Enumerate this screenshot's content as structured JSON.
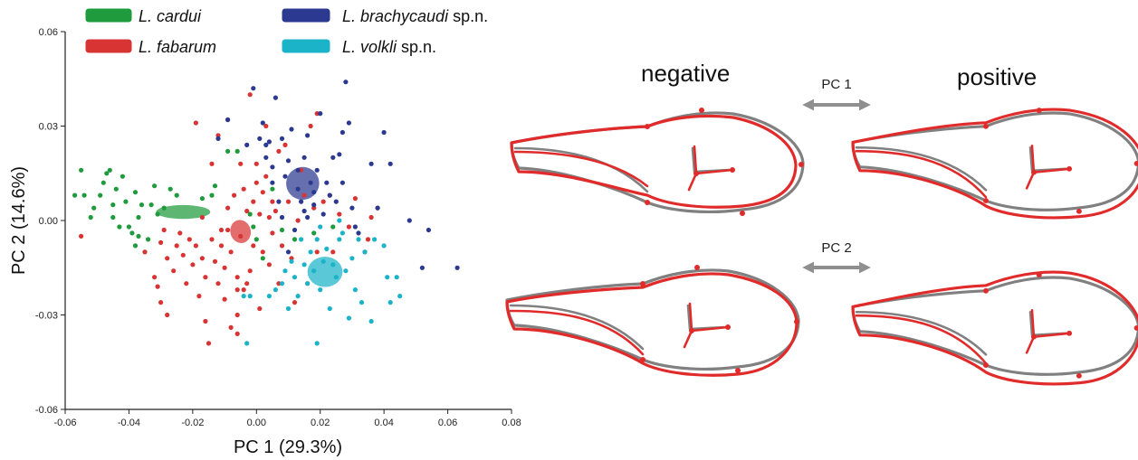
{
  "chart_data": {
    "type": "scatter",
    "xlabel": "PC 1 (29.3%)",
    "ylabel": "PC 2 (14.6%)",
    "xlim": [
      -0.06,
      0.08
    ],
    "ylim": [
      -0.06,
      0.06
    ],
    "xticks": [
      "-0.06",
      "-0.04",
      "-0.02",
      "0.00",
      "0.02",
      "0.04",
      "0.06",
      "0.08"
    ],
    "yticks": [
      "-0.06",
      "-0.03",
      "0.00",
      "0.03",
      "0.06"
    ],
    "legend_position": "top",
    "series": [
      {
        "name": "L. cardui",
        "name_italic": "L. cardui",
        "name_suffix": "",
        "color": "#1f9a3c",
        "ellipse": {
          "cx": -0.023,
          "cy": 0.0027,
          "rx": 0.0085,
          "ry": 0.0022,
          "angle": 0
        },
        "points": [
          [
            -0.057,
            0.008
          ],
          [
            -0.055,
            0.016
          ],
          [
            -0.054,
            0.008
          ],
          [
            -0.052,
            0.001
          ],
          [
            -0.051,
            0.004
          ],
          [
            -0.049,
            0.008
          ],
          [
            -0.048,
            0.012
          ],
          [
            -0.047,
            0.015
          ],
          [
            -0.046,
            0.016
          ],
          [
            -0.045,
            0.001
          ],
          [
            -0.045,
            0.005
          ],
          [
            -0.044,
            0.01
          ],
          [
            -0.043,
            -0.002
          ],
          [
            -0.042,
            0.014
          ],
          [
            -0.041,
            0.006
          ],
          [
            -0.04,
            -0.002
          ],
          [
            -0.039,
            -0.004
          ],
          [
            -0.038,
            -0.008
          ],
          [
            -0.038,
            0.009
          ],
          [
            -0.037,
            -0.005
          ],
          [
            -0.037,
            0.001
          ],
          [
            -0.036,
            0.005
          ],
          [
            -0.035,
            -0.01
          ],
          [
            -0.034,
            -0.006
          ],
          [
            -0.033,
            0.005
          ],
          [
            -0.032,
            0.011
          ],
          [
            -0.031,
            0.002
          ],
          [
            -0.029,
            0.004
          ],
          [
            -0.027,
            0.01
          ],
          [
            -0.025,
            0.008
          ],
          [
            -0.017,
            0.007
          ],
          [
            -0.014,
            0.008
          ],
          [
            -0.013,
            0.011
          ],
          [
            -0.009,
            0.022
          ],
          [
            -0.006,
            0.022
          ],
          [
            -0.002,
            0.002
          ],
          [
            -0.001,
            -0.002
          ],
          [
            0.0,
            -0.006
          ],
          [
            0.002,
            -0.012
          ],
          [
            0.005,
            0.01
          ],
          [
            0.008,
            -0.003
          ],
          [
            0.012,
            -0.006
          ],
          [
            0.018,
            -0.004
          ],
          [
            0.024,
            -0.002
          ]
        ]
      },
      {
        "name": "L. fabarum",
        "name_italic": "L. fabarum",
        "name_suffix": "",
        "color": "#d83434",
        "ellipse": {
          "cx": -0.005,
          "cy": -0.0035,
          "rx": 0.0032,
          "ry": 0.0037,
          "angle": 15
        },
        "points": [
          [
            -0.055,
            -0.005
          ],
          [
            -0.035,
            -0.01
          ],
          [
            -0.032,
            -0.018
          ],
          [
            -0.031,
            -0.021
          ],
          [
            -0.03,
            -0.007
          ],
          [
            -0.03,
            -0.026
          ],
          [
            -0.029,
            -0.003
          ],
          [
            -0.028,
            -0.012
          ],
          [
            -0.028,
            -0.03
          ],
          [
            -0.026,
            -0.016
          ],
          [
            -0.025,
            -0.008
          ],
          [
            -0.024,
            -0.004
          ],
          [
            -0.023,
            -0.011
          ],
          [
            -0.022,
            -0.02
          ],
          [
            -0.021,
            -0.006
          ],
          [
            -0.02,
            -0.014
          ],
          [
            -0.019,
            -0.008
          ],
          [
            -0.018,
            -0.024
          ],
          [
            -0.017,
            -0.012
          ],
          [
            -0.016,
            -0.018
          ],
          [
            -0.016,
            -0.032
          ],
          [
            -0.015,
            -0.039
          ],
          [
            -0.014,
            -0.006
          ],
          [
            -0.013,
            -0.013
          ],
          [
            -0.012,
            -0.02
          ],
          [
            -0.012,
            0.027
          ],
          [
            -0.011,
            -0.008
          ],
          [
            -0.01,
            -0.015
          ],
          [
            -0.01,
            -0.025
          ],
          [
            -0.009,
            0.004
          ],
          [
            -0.009,
            -0.003
          ],
          [
            -0.008,
            -0.01
          ],
          [
            -0.008,
            -0.034
          ],
          [
            -0.007,
            0.008
          ],
          [
            -0.006,
            -0.018
          ],
          [
            -0.006,
            -0.022
          ],
          [
            -0.006,
            -0.03
          ],
          [
            -0.006,
            -0.036
          ],
          [
            -0.005,
            0.018
          ],
          [
            -0.005,
            -0.005
          ],
          [
            -0.004,
            0.01
          ],
          [
            -0.004,
            -0.022
          ],
          [
            -0.003,
            0.003
          ],
          [
            -0.002,
            0.04
          ],
          [
            -0.002,
            -0.016
          ],
          [
            -0.001,
            0.006
          ],
          [
            -0.001,
            -0.008
          ],
          [
            0.0,
            0.012
          ],
          [
            0.001,
            0.002
          ],
          [
            0.001,
            -0.028
          ],
          [
            0.002,
            0.009
          ],
          [
            0.002,
            -0.01
          ],
          [
            0.003,
            0.014
          ],
          [
            0.003,
            0.03
          ],
          [
            0.004,
            -0.014
          ],
          [
            0.004,
            0.001
          ],
          [
            0.005,
            0.006
          ],
          [
            0.005,
            -0.004
          ],
          [
            0.006,
            0.003
          ],
          [
            0.007,
            0.022
          ],
          [
            0.007,
            -0.02
          ],
          [
            0.008,
            -0.008
          ],
          [
            0.009,
            0.024
          ],
          [
            0.01,
            0.006
          ],
          [
            0.011,
            -0.012
          ],
          [
            0.012,
            -0.026
          ],
          [
            0.013,
            0.0
          ],
          [
            0.015,
            0.008
          ],
          [
            0.016,
            -0.02
          ],
          [
            0.017,
            0.03
          ],
          [
            0.018,
            0.004
          ],
          [
            0.019,
            0.034
          ],
          [
            0.019,
            -0.01
          ],
          [
            0.021,
            0.006
          ],
          [
            0.023,
            0.008
          ],
          [
            0.024,
            -0.01
          ],
          [
            0.026,
            0.002
          ],
          [
            0.029,
            -0.002
          ],
          [
            0.031,
            0.007
          ],
          [
            0.035,
            -0.006
          ],
          [
            0.036,
            0.001
          ],
          [
            0.038,
            0.004
          ],
          [
            -0.017,
            0.001
          ],
          [
            -0.003,
            -0.02
          ],
          [
            0.014,
            0.016
          ],
          [
            -0.019,
            0.031
          ],
          [
            -0.014,
            0.018
          ],
          [
            -0.009,
            0.032
          ],
          [
            0.0,
            0.018
          ],
          [
            -0.011,
            -0.003
          ]
        ]
      },
      {
        "name": "L. brachycaudi sp.n.",
        "name_italic": "L. brachycaudi",
        "name_suffix": " sp.n.",
        "color": "#2b3990",
        "ellipse": {
          "cx": 0.0145,
          "cy": 0.0118,
          "rx": 0.0052,
          "ry": 0.0052,
          "angle": 30
        },
        "points": [
          [
            -0.012,
            0.026
          ],
          [
            -0.009,
            0.032
          ],
          [
            -0.003,
            0.024
          ],
          [
            -0.001,
            0.042
          ],
          [
            0.001,
            0.026
          ],
          [
            0.002,
            0.031
          ],
          [
            0.003,
            0.02
          ],
          [
            0.003,
            0.024
          ],
          [
            0.004,
            0.025
          ],
          [
            0.005,
            0.017
          ],
          [
            0.005,
            0.012
          ],
          [
            0.006,
            0.039
          ],
          [
            0.007,
            0.006
          ],
          [
            0.008,
            0.026
          ],
          [
            0.009,
            0.014
          ],
          [
            0.01,
            0.019
          ],
          [
            0.011,
            0.029
          ],
          [
            0.012,
            -0.003
          ],
          [
            0.013,
            0.016
          ],
          [
            0.013,
            0.01
          ],
          [
            0.014,
            0.006
          ],
          [
            0.015,
            0.02
          ],
          [
            0.015,
            0.003
          ],
          [
            0.016,
            0.027
          ],
          [
            0.017,
            0.012
          ],
          [
            0.018,
            0.009
          ],
          [
            0.018,
            0.005
          ],
          [
            0.019,
            0.016
          ],
          [
            0.02,
            0.034
          ],
          [
            0.021,
            0.002
          ],
          [
            0.022,
            0.012
          ],
          [
            0.023,
            0.008
          ],
          [
            0.024,
            0.02
          ],
          [
            0.025,
            0.006
          ],
          [
            0.026,
            0.021
          ],
          [
            0.027,
            0.028
          ],
          [
            0.027,
            0.012
          ],
          [
            0.028,
            0.044
          ],
          [
            0.029,
            0.031
          ],
          [
            0.03,
            0.004
          ],
          [
            0.031,
            -0.002
          ],
          [
            0.032,
            -0.004
          ],
          [
            0.034,
            -0.01
          ],
          [
            0.036,
            0.018
          ],
          [
            0.038,
            0.004
          ],
          [
            0.04,
            0.028
          ],
          [
            0.042,
            0.018
          ],
          [
            0.048,
            0.0
          ],
          [
            0.052,
            -0.015
          ],
          [
            0.054,
            -0.003
          ],
          [
            0.063,
            -0.015
          ],
          [
            0.016,
            0.001
          ],
          [
            0.01,
            -0.01
          ],
          [
            0.008,
            0.001
          ]
        ]
      },
      {
        "name": "L. volkli sp.n.",
        "name_italic": "L. volkli",
        "name_suffix": " sp.n.",
        "color": "#1ab3c7",
        "ellipse": {
          "cx": 0.0215,
          "cy": -0.0163,
          "rx": 0.0055,
          "ry": 0.0048,
          "angle": 0
        },
        "points": [
          [
            -0.004,
            -0.024
          ],
          [
            -0.002,
            -0.024
          ],
          [
            -0.003,
            -0.039
          ],
          [
            0.004,
            -0.024
          ],
          [
            0.006,
            -0.022
          ],
          [
            0.008,
            -0.02
          ],
          [
            0.009,
            -0.016
          ],
          [
            0.01,
            -0.028
          ],
          [
            0.011,
            -0.013
          ],
          [
            0.012,
            -0.018
          ],
          [
            0.013,
            -0.024
          ],
          [
            0.014,
            -0.006
          ],
          [
            0.015,
            -0.014
          ],
          [
            0.016,
            -0.02
          ],
          [
            0.017,
            -0.01
          ],
          [
            0.018,
            -0.016
          ],
          [
            0.019,
            -0.006
          ],
          [
            0.019,
            -0.039
          ],
          [
            0.02,
            -0.022
          ],
          [
            0.021,
            -0.013
          ],
          [
            0.022,
            -0.009
          ],
          [
            0.023,
            -0.028
          ],
          [
            0.024,
            -0.014
          ],
          [
            0.025,
            -0.018
          ],
          [
            0.026,
            -0.006
          ],
          [
            0.027,
            -0.004
          ],
          [
            0.028,
            -0.016
          ],
          [
            0.029,
            -0.031
          ],
          [
            0.03,
            -0.012
          ],
          [
            0.031,
            -0.022
          ],
          [
            0.032,
            -0.006
          ],
          [
            0.033,
            -0.026
          ],
          [
            0.034,
            -0.01
          ],
          [
            0.036,
            -0.032
          ],
          [
            0.037,
            -0.006
          ],
          [
            0.041,
            -0.018
          ],
          [
            0.042,
            -0.026
          ],
          [
            0.044,
            -0.018
          ],
          [
            0.045,
            -0.024
          ],
          [
            0.04,
            -0.008
          ],
          [
            0.026,
            0.0
          ],
          [
            0.02,
            -0.002
          ]
        ]
      }
    ]
  },
  "panels": {
    "negative_label": "negative",
    "positive_label": "positive",
    "pc1_label": "PC 1",
    "pc2_label": "PC 2",
    "consensus_color": "#808080",
    "shape_color": "#e12b2b"
  }
}
